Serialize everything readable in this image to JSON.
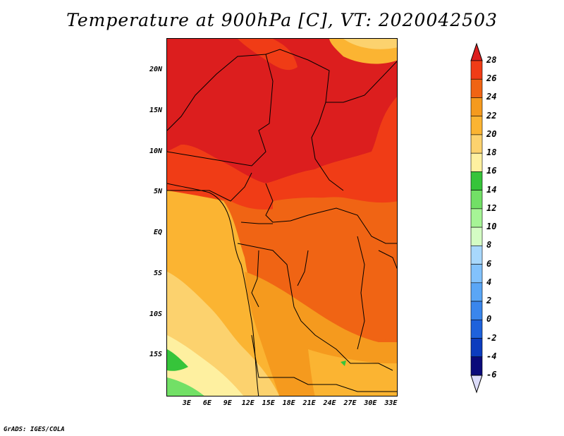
{
  "title": "Temperature at 900hPa [C], VT: 2020042503",
  "footer": "GrADS: IGES/COLA",
  "map": {
    "lon_range": [
      0,
      34
    ],
    "lat_range": [
      -20,
      24
    ],
    "x_ticks": [
      {
        "lon": 3,
        "label": "3E"
      },
      {
        "lon": 6,
        "label": "6E"
      },
      {
        "lon": 9,
        "label": "9E"
      },
      {
        "lon": 12,
        "label": "12E"
      },
      {
        "lon": 15,
        "label": "15E"
      },
      {
        "lon": 18,
        "label": "18E"
      },
      {
        "lon": 21,
        "label": "21E"
      },
      {
        "lon": 24,
        "label": "24E"
      },
      {
        "lon": 27,
        "label": "27E"
      },
      {
        "lon": 30,
        "label": "30E"
      },
      {
        "lon": 33,
        "label": "33E"
      }
    ],
    "y_ticks": [
      {
        "lat": 20,
        "label": "20N"
      },
      {
        "lat": 15,
        "label": "15N"
      },
      {
        "lat": 10,
        "label": "10N"
      },
      {
        "lat": 5,
        "label": "5N"
      },
      {
        "lat": 0,
        "label": "EQ"
      },
      {
        "lat": -5,
        "label": "5S"
      },
      {
        "lat": -10,
        "label": "10S"
      },
      {
        "lat": -15,
        "label": "15S"
      }
    ]
  },
  "colorbar": {
    "levels": [
      "28",
      "26",
      "24",
      "22",
      "20",
      "18",
      "16",
      "14",
      "12",
      "10",
      "8",
      "6",
      "4",
      "2",
      "0",
      "-2",
      "-4",
      "-6"
    ],
    "colors": [
      "#dc1e1e",
      "#f03c16",
      "#f06414",
      "#f59a1e",
      "#fbb432",
      "#fcd26e",
      "#fef0a0",
      "#36c43a",
      "#72e066",
      "#a6f496",
      "#d4fcc4",
      "#a8d8fc",
      "#82c2fc",
      "#5aa6f6",
      "#3a86ec",
      "#1e62dc",
      "#0c3cbe",
      "#0a0a7a",
      "#dcdcfa"
    ]
  }
}
